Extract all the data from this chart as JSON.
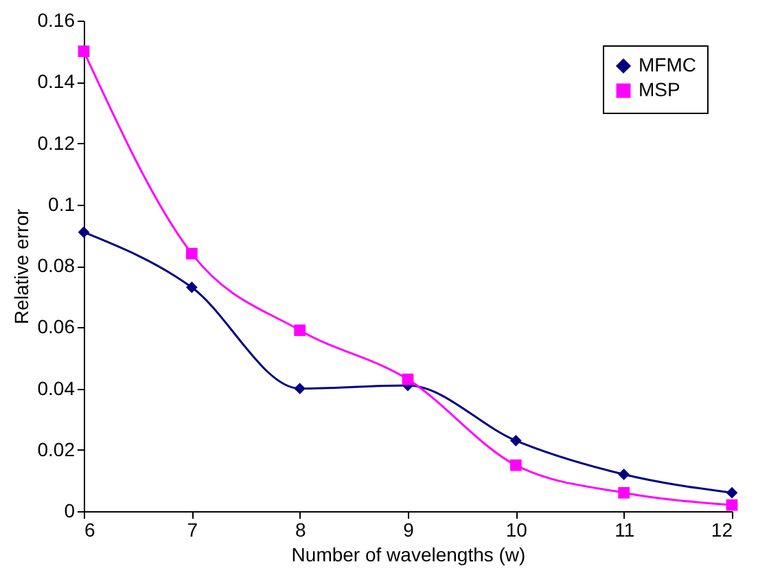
{
  "chart_data": {
    "type": "line",
    "xlabel": "Number of wavelengths (w)",
    "ylabel": "Relative error",
    "x": [
      6,
      7,
      8,
      9,
      10,
      11,
      12
    ],
    "series": [
      {
        "name": "MFMC",
        "color": "#000080",
        "marker": "diamond",
        "values": [
          0.091,
          0.073,
          0.04,
          0.041,
          0.023,
          0.012,
          0.006
        ]
      },
      {
        "name": "MSP",
        "color": "#ff00ff",
        "marker": "square",
        "values": [
          0.15,
          0.084,
          0.059,
          0.043,
          0.015,
          0.006,
          0.002
        ]
      }
    ],
    "xlim": [
      6,
      12
    ],
    "xticks": [
      6,
      7,
      8,
      9,
      10,
      11,
      12
    ],
    "ylim": [
      0,
      0.16
    ],
    "yticks": [
      0,
      0.02,
      0.04,
      0.06,
      0.08,
      0.1,
      0.12,
      0.14,
      0.16
    ],
    "grid": false,
    "legend": "top right",
    "line_style": "solid"
  }
}
